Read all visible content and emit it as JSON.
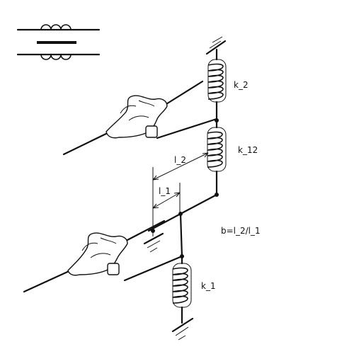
{
  "diagram": {
    "labels": {
      "k2": "k_2",
      "k12": "k_12",
      "k1": "k_1",
      "l2": "l_2",
      "l1": "l_1",
      "ratio": "b=l_2/l_1"
    },
    "colors": {
      "ink": "#111111",
      "background": "#ffffff"
    },
    "icons": [
      "transformer-symbol-icon",
      "hand-icon",
      "ground-icon",
      "spring-coil-icon"
    ]
  }
}
